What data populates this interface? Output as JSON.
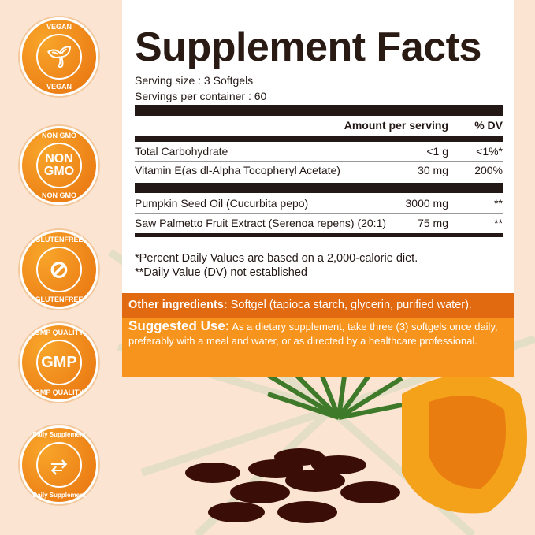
{
  "badges": [
    {
      "top": "VEGAN",
      "center": "",
      "bottom": "VEGAN",
      "icon": "plant-hand-icon"
    },
    {
      "top": "NON GMO",
      "center": "NON GMO",
      "bottom": "NON GMO",
      "icon": ""
    },
    {
      "top": "GLUTENFREE",
      "center": "",
      "bottom": "GLUTENFREE",
      "icon": "no-wheat-icon"
    },
    {
      "top": "GMP QUALITY",
      "center": "GMP",
      "bottom": "GMP QUALITY",
      "icon": ""
    },
    {
      "top": "Daily Supplement",
      "center": "",
      "bottom": "Daily Supplement",
      "icon": "route-icon"
    }
  ],
  "facts": {
    "title": "Supplement Facts",
    "serving_size": "Serving size : 3 Softgels",
    "servings_per_container": "Servings per container : 60",
    "header_amount": "Amount per serving",
    "header_dv": "% DV",
    "rows": [
      {
        "name": "Total Carbohydrate",
        "amount": "<1 g",
        "dv": "<1%*"
      },
      {
        "name": "Vitamin E(as dl-Alpha Tocopheryl Acetate)",
        "amount": "30 mg",
        "dv": "200%"
      },
      {
        "name": "Pumpkin Seed Oil (Cucurbita pepo)",
        "amount": "3000 mg",
        "dv": "**"
      },
      {
        "name": "Saw Palmetto Fruit Extract (Serenoa repens) (20:1)",
        "amount": "75 mg",
        "dv": "**"
      }
    ],
    "footnote1": "*Percent Daily Values are based on a 2,000-calorie diet.",
    "footnote2": "**Daily Value (DV) not established"
  },
  "other": {
    "label": "Other ingredients:",
    "text": " Softgel (tapioca starch, glycerin, purified water)."
  },
  "use": {
    "label": "Suggested Use:",
    "text": " As a dietary supplement, take three (3) softgels once daily, preferably with a meal and water, or as directed by a healthcare professional."
  },
  "colors": {
    "orange_dark": "#e1690f",
    "orange": "#f7941d",
    "background": "#fbe4d2"
  }
}
